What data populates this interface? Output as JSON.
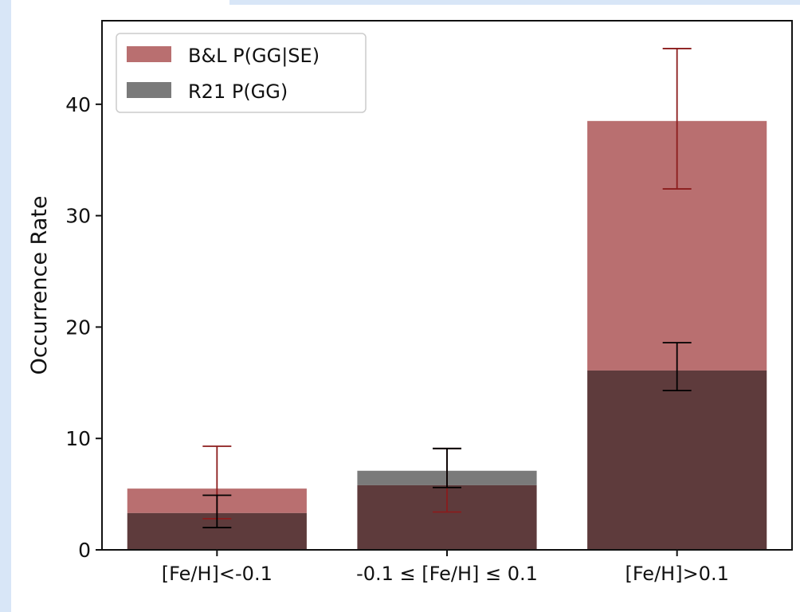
{
  "chart_data": {
    "type": "bar",
    "ylabel": "Occurrence Rate",
    "xlabel": "",
    "ylim": [
      0,
      47.5
    ],
    "yticks": [
      0,
      10,
      20,
      30,
      40
    ],
    "grid": false,
    "legend_position": "top-left",
    "categories": [
      "[Fe/H]<-0.1",
      "-0.1 ≤ [Fe/H] ≤ 0.1",
      "[Fe/H]>0.1"
    ],
    "series": [
      {
        "name": "B&L P(GG|SE)",
        "color": "#b96f70",
        "errorbar_color": "#8b1c1c",
        "values": [
          5.5,
          5.8,
          38.5
        ],
        "err_low": [
          2.7,
          2.4,
          6.1
        ],
        "err_high": [
          3.8,
          3.3,
          6.5
        ]
      },
      {
        "name": "R21 P(GG)",
        "color": "#7a7a7a",
        "errorbar_color": "#000000",
        "values": [
          3.3,
          7.1,
          16.1
        ],
        "err_low": [
          1.3,
          1.5,
          1.8
        ],
        "err_high": [
          1.6,
          2.0,
          2.5
        ]
      }
    ],
    "overlap_color": "#5e3b3c"
  }
}
